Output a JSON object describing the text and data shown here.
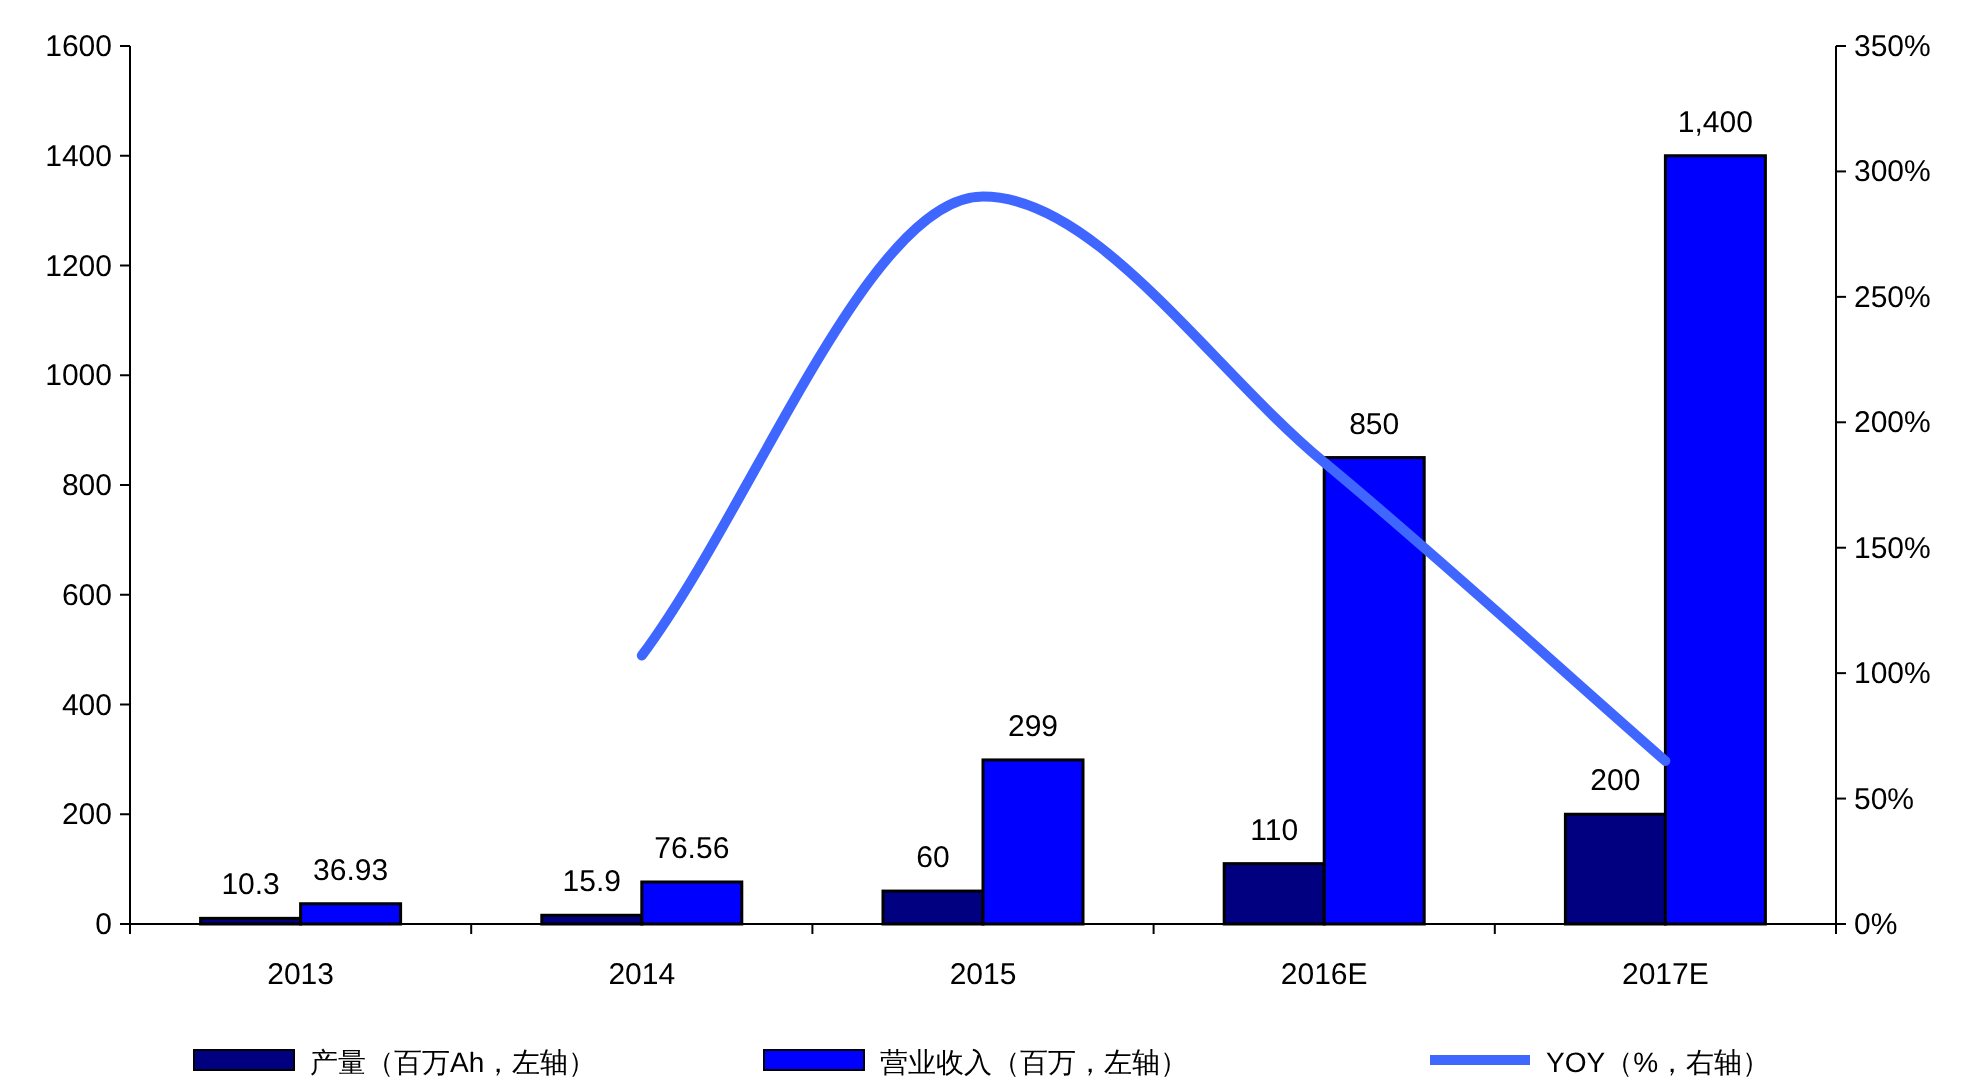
{
  "chart_data": {
    "type": "bar",
    "categories": [
      "2013",
      "2014",
      "2015",
      "2016E",
      "2017E"
    ],
    "series": [
      {
        "name": "产量（百万Ah，左轴）",
        "color": "#000080",
        "values": [
          10.3,
          15.9,
          60,
          110,
          200
        ],
        "value_labels": [
          "10.3",
          "15.9",
          "60",
          "110",
          "200"
        ]
      },
      {
        "name": "营业收入（百万，左轴）",
        "color": "#0000ff",
        "values": [
          36.93,
          76.56,
          299,
          850,
          1400
        ],
        "value_labels": [
          "36.93",
          "76.56",
          "299",
          "850",
          "1,400"
        ]
      },
      {
        "name": "YOY（%，右轴）",
        "type": "line",
        "axis": "y2",
        "color": "#3f66ff",
        "values": [
          null,
          107,
          290,
          184,
          65
        ],
        "marker": "none"
      }
    ],
    "ylim": [
      0,
      1600
    ],
    "yticks": [
      0,
      200,
      400,
      600,
      800,
      1000,
      1200,
      1400,
      1600
    ],
    "y2lim": [
      0,
      350
    ],
    "y2ticks": [
      {
        "value": 0,
        "label": "0%"
      },
      {
        "value": 50,
        "label": "50%"
      },
      {
        "value": 100,
        "label": "100%"
      },
      {
        "value": 150,
        "label": "150%"
      },
      {
        "value": 200,
        "label": "200%"
      },
      {
        "value": 250,
        "label": "250%"
      },
      {
        "value": 300,
        "label": "300%"
      },
      {
        "value": 350,
        "label": "350%"
      }
    ],
    "grid": false,
    "legend": "bottom"
  }
}
